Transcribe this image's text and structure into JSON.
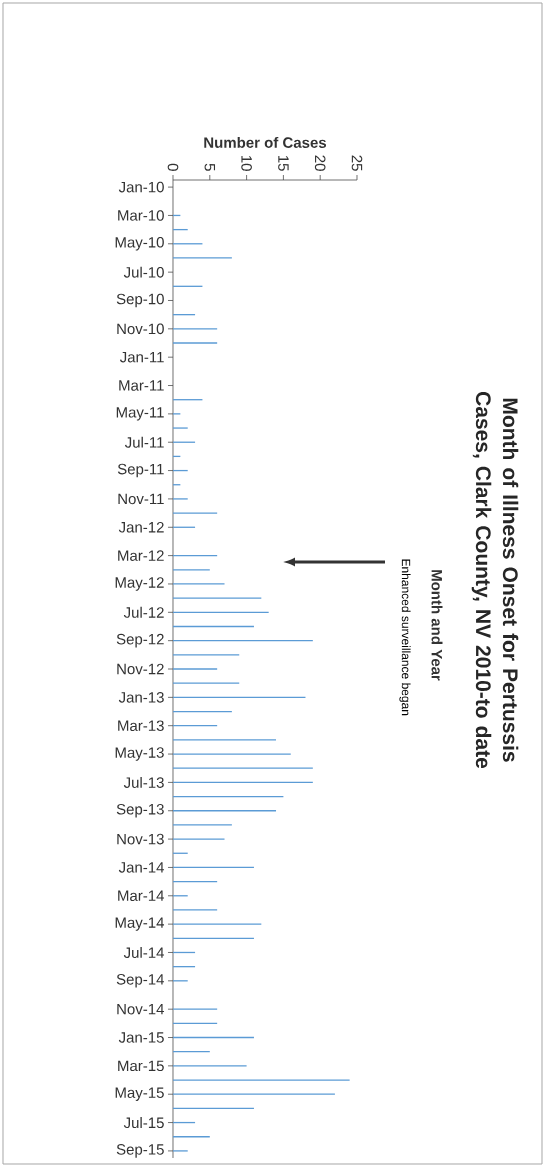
{
  "chart_data": {
    "type": "bar",
    "orientation": "horizontal",
    "title": "Month of Illness Onset for Pertussis Cases, Clark County, NV 2010-to date",
    "xlabel": "Number of Cases",
    "ylabel": "Month and Year",
    "annotations": [
      "Enhanced surveillance began"
    ],
    "categories": [
      "Jan-10",
      null,
      "Mar-10",
      null,
      "May-10",
      null,
      "Jul-10",
      null,
      "Sep-10",
      null,
      "Nov-10",
      null,
      "Jan-11",
      null,
      "Mar-11",
      null,
      "May-11",
      null,
      "Jul-11",
      null,
      "Sep-11",
      null,
      "Nov-11",
      null,
      "Jan-12",
      null,
      "Mar-12",
      null,
      "May-12",
      null,
      "Jul-12",
      null,
      "Sep-12",
      null,
      "Nov-12",
      null,
      "Jan-13",
      null,
      "Mar-13",
      null,
      "May-13",
      null,
      "Jul-13",
      null,
      "Sep-13",
      null,
      "Nov-13",
      null,
      "Jan-14",
      null,
      "Mar-14",
      null,
      "May-14",
      null,
      "Jul-14",
      null,
      "Sep-14",
      null,
      "Nov-14",
      null,
      "Jan-15",
      null,
      "Mar-15",
      null,
      "May-15",
      null,
      "Jul-15",
      null,
      "Sep-15"
    ],
    "values": [
      0,
      0,
      1,
      2,
      4,
      8,
      0,
      4,
      0,
      3,
      6,
      6,
      0,
      0,
      0,
      4,
      1,
      2,
      3,
      1,
      2,
      1,
      2,
      6,
      3,
      0,
      6,
      5,
      7,
      12,
      13,
      11,
      19,
      9,
      6,
      9,
      18,
      8,
      6,
      14,
      16,
      19,
      19,
      15,
      14,
      8,
      7,
      2,
      11,
      6,
      2,
      6,
      12,
      11,
      3,
      3,
      2,
      0,
      6,
      6,
      11,
      5,
      10,
      24,
      22,
      11,
      3,
      5,
      2
    ],
    "color": "#5b9bd5",
    "xlim": [
      0,
      25
    ],
    "xticks": [
      0,
      5,
      10,
      15,
      20,
      25
    ]
  }
}
